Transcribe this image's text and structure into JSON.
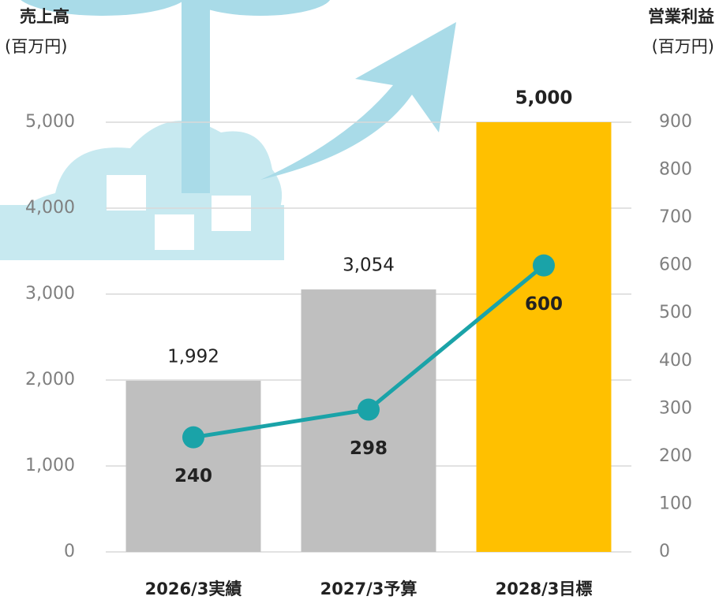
{
  "chart_data": {
    "type": "bar",
    "y_label": "売上高",
    "y_units": "(百万円)",
    "y2_label": "営業利益",
    "y2_units": "(百万円)",
    "categories": [
      "2026/3実績",
      "2027/3予算",
      "2028/3目標"
    ],
    "series": [
      {
        "type": "bar",
        "colors": [
          "#bfbfbf",
          "#bfbfbf",
          "#ffc000"
        ],
        "values": [
          1992,
          3054,
          5000
        ],
        "value_labels": [
          "1,992",
          "3,054",
          "5,000"
        ]
      },
      {
        "type": "line",
        "axis": "y2",
        "color": "#1aa3a8",
        "values": [
          240,
          298,
          600
        ]
      }
    ],
    "ylim": [
      0,
      5000
    ],
    "yticks": [
      0,
      {
        "value": 1000,
        "label": "1,000"
      },
      {
        "value": 2000,
        "label": "2,000"
      },
      {
        "value": 3000,
        "label": "3,000"
      },
      {
        "value": 4000,
        "label": "4,000"
      },
      {
        "value": 5000,
        "label": "5,000"
      }
    ],
    "y2lim": [
      0,
      900
    ],
    "y2ticks": [
      0,
      100,
      200,
      300,
      400,
      500,
      600,
      700,
      800,
      900
    ],
    "grid": true
  }
}
